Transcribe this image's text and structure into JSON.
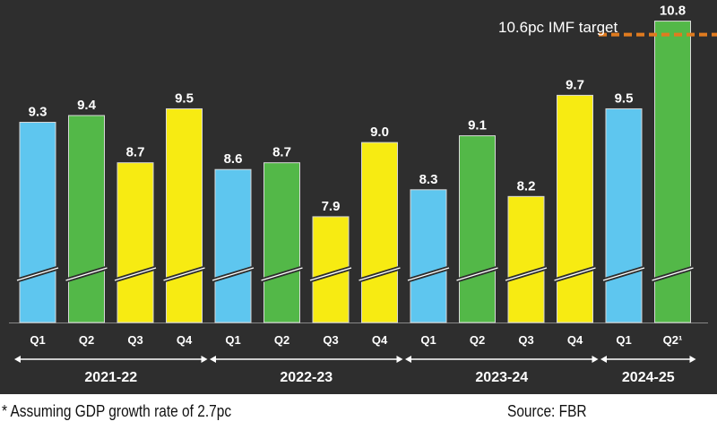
{
  "chart_data": {
    "type": "bar",
    "categories": [
      "Q1",
      "Q2",
      "Q3",
      "Q4",
      "Q1",
      "Q2",
      "Q3",
      "Q4",
      "Q1",
      "Q2",
      "Q3",
      "Q4",
      "Q1",
      "Q2¹"
    ],
    "values": [
      9.3,
      9.4,
      8.7,
      9.5,
      8.6,
      8.7,
      7.9,
      9.0,
      8.3,
      9.1,
      8.2,
      9.7,
      9.5,
      10.8
    ],
    "value_labels": [
      "9.3",
      "9.4",
      "8.7",
      "9.5",
      "8.6",
      "8.7",
      "7.9",
      "9.0",
      "8.3",
      "9.1",
      "8.2",
      "9.7",
      "9.5",
      "10.8"
    ],
    "groups": [
      {
        "label": "2021-22",
        "count": 4
      },
      {
        "label": "2022-23",
        "count": 4
      },
      {
        "label": "2023-24",
        "count": 4
      },
      {
        "label": "2024-25",
        "count": 2
      }
    ],
    "target": {
      "value": 10.6,
      "label": "10.6pc IMF target",
      "color": "#e07b1f"
    },
    "axis_break": true,
    "xlabel": "",
    "ylabel": "",
    "ylim": [
      6.0,
      11.0
    ],
    "quarter_colors": {
      "Q1": "#5ec6ef",
      "Q2": "#53b848",
      "Q3": "#f7eb12",
      "Q4": "#f7eb12"
    },
    "background": "#2e2e2e"
  },
  "footnote": "* Assuming GDP growth rate of 2.7pc",
  "source": "Source: FBR"
}
